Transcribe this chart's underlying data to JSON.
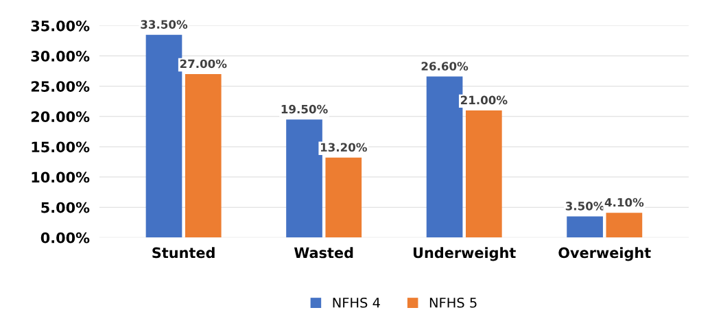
{
  "chart_data": {
    "type": "bar",
    "categories": [
      "Stunted",
      "Wasted",
      "Underweight",
      "Overweight"
    ],
    "series": [
      {
        "name": "NFHS 4",
        "color": "#4472c4",
        "values": [
          33.5,
          19.5,
          26.6,
          3.5
        ],
        "value_labels": [
          "33.50%",
          "19.50%",
          "26.60%",
          "3.50%"
        ]
      },
      {
        "name": "NFHS 5",
        "color": "#ed7d31",
        "values": [
          27.0,
          13.2,
          21.0,
          4.1
        ],
        "value_labels": [
          "27.00%",
          "13.20%",
          "21.00%",
          "4.10%"
        ]
      }
    ],
    "ylim": [
      0,
      35
    ],
    "yticks": [
      {
        "value": 0,
        "label": "0.00%"
      },
      {
        "value": 5,
        "label": "5.00%"
      },
      {
        "value": 10,
        "label": "10.00%"
      },
      {
        "value": 15,
        "label": "15.00%"
      },
      {
        "value": 20,
        "label": "20.00%"
      },
      {
        "value": 25,
        "label": "25.00%"
      },
      {
        "value": 30,
        "label": "30.00%"
      },
      {
        "value": 35,
        "label": "35.00%"
      }
    ],
    "grid": "y",
    "legend": "bottom"
  }
}
